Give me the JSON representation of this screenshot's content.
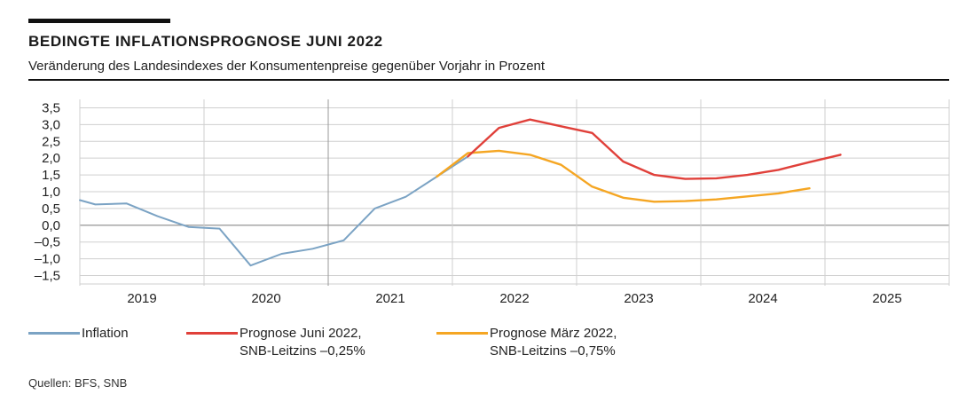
{
  "header": {
    "title": "BEDINGTE INFLATIONSPROGNOSE JUNI 2022",
    "subtitle": "Veränderung des Landesindexes der Konsumentenpreise gegenüber Vorjahr in Prozent"
  },
  "legend": {
    "inflation": "Inflation",
    "june_line1": "Prognose Juni 2022,",
    "june_line2": "SNB-Leitzins –0,25%",
    "march_line1": "Prognose März 2022,",
    "march_line2": "SNB-Leitzins –0,75%"
  },
  "source": "Quellen: BFS, SNB",
  "colors": {
    "inflation": "#7ba3c4",
    "june": "#e0403a",
    "march": "#f5a623"
  },
  "chart_data": {
    "type": "line",
    "title": "BEDINGTE INFLATIONSPROGNOSE JUNI 2022",
    "ylabel": "Veränderung des Landesindexes der Konsumentenpreise gegenüber Vorjahr in Prozent",
    "xlim": [
      2019.0,
      2026.0
    ],
    "ylim": [
      -1.75,
      3.75
    ],
    "yticks": [
      3.5,
      3.0,
      2.5,
      2.0,
      1.5,
      1.0,
      0.5,
      0.0,
      -0.5,
      -1.0,
      -1.5
    ],
    "ytick_labels": [
      "3,5",
      "3,0",
      "2,5",
      "2,0",
      "1,5",
      "1,0",
      "0,5",
      "0,0",
      "–0,5",
      "–1,0",
      "–1,5"
    ],
    "year_labels": [
      {
        "label": "2019",
        "x": 2019.5
      },
      {
        "label": "2020",
        "x": 2020.5
      },
      {
        "label": "2021",
        "x": 2021.5
      },
      {
        "label": "2022",
        "x": 2022.5
      },
      {
        "label": "2023",
        "x": 2023.5
      },
      {
        "label": "2024",
        "x": 2024.5
      },
      {
        "label": "2025",
        "x": 2025.5
      }
    ],
    "series": [
      {
        "name": "Inflation",
        "color": "#7ba3c4",
        "x": [
          2019.0,
          2019.125,
          2019.375,
          2019.625,
          2019.875,
          2020.125,
          2020.375,
          2020.625,
          2020.875,
          2021.125,
          2021.375,
          2021.625,
          2021.875,
          2022.125
        ],
        "y": [
          0.75,
          0.62,
          0.65,
          0.27,
          -0.05,
          -0.1,
          -1.2,
          -0.85,
          -0.7,
          -0.45,
          0.5,
          0.85,
          1.45,
          2.05
        ]
      },
      {
        "name": "Prognose Juni 2022, SNB-Leitzins –0,25%",
        "color": "#e0403a",
        "x": [
          2022.125,
          2022.375,
          2022.625,
          2022.875,
          2023.125,
          2023.375,
          2023.625,
          2023.875,
          2024.125,
          2024.375,
          2024.625,
          2024.875,
          2025.125
        ],
        "y": [
          2.05,
          2.9,
          3.15,
          2.95,
          2.75,
          1.9,
          1.5,
          1.38,
          1.4,
          1.5,
          1.65,
          1.88,
          2.1
        ]
      },
      {
        "name": "Prognose März 2022, SNB-Leitzins –0,75%",
        "color": "#f5a623",
        "x": [
          2021.875,
          2022.125,
          2022.375,
          2022.625,
          2022.875,
          2023.125,
          2023.375,
          2023.625,
          2023.875,
          2024.125,
          2024.375,
          2024.625,
          2024.875
        ],
        "y": [
          1.45,
          2.15,
          2.22,
          2.1,
          1.8,
          1.15,
          0.82,
          0.7,
          0.72,
          0.77,
          0.86,
          0.95,
          1.1
        ]
      }
    ]
  }
}
